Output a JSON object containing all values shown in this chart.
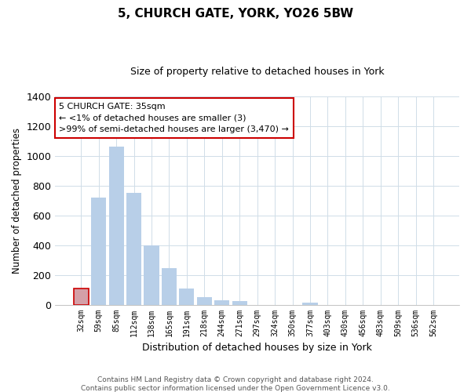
{
  "title": "5, CHURCH GATE, YORK, YO26 5BW",
  "subtitle": "Size of property relative to detached houses in York",
  "xlabel": "Distribution of detached houses by size in York",
  "ylabel": "Number of detached properties",
  "footnote1": "Contains HM Land Registry data © Crown copyright and database right 2024.",
  "footnote2": "Contains public sector information licensed under the Open Government Licence v3.0.",
  "bar_labels": [
    "32sqm",
    "59sqm",
    "85sqm",
    "112sqm",
    "138sqm",
    "165sqm",
    "191sqm",
    "218sqm",
    "244sqm",
    "271sqm",
    "297sqm",
    "324sqm",
    "350sqm",
    "377sqm",
    "403sqm",
    "430sqm",
    "456sqm",
    "483sqm",
    "509sqm",
    "536sqm",
    "562sqm"
  ],
  "bar_values": [
    110,
    720,
    1060,
    750,
    400,
    245,
    110,
    50,
    28,
    22,
    0,
    0,
    0,
    12,
    0,
    0,
    0,
    0,
    0,
    0,
    0
  ],
  "highlight_bar_index": 0,
  "bar_color": "#b8cfe8",
  "highlight_color": "#d4a0a8",
  "ylim": [
    0,
    1400
  ],
  "yticks": [
    0,
    200,
    400,
    600,
    800,
    1000,
    1200,
    1400
  ],
  "annotation_title": "5 CHURCH GATE: 35sqm",
  "annotation_line1": "← <1% of detached houses are smaller (3)",
  "annotation_line2": ">99% of semi-detached houses are larger (3,470) →",
  "annotation_box_color": "#ffffff",
  "annotation_box_edge": "#cc0000",
  "grid_color": "#d0dde8",
  "title_fontsize": 11,
  "subtitle_fontsize": 9
}
